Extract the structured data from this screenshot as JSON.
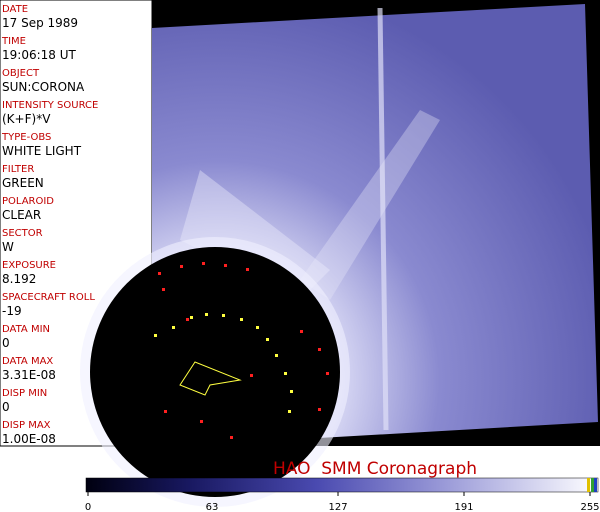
{
  "fields": [
    {
      "label": "DATE",
      "value": "17 Sep 1989"
    },
    {
      "label": "TIME",
      "value": "19:06:18 UT"
    },
    {
      "label": "OBJECT",
      "value": "SUN:CORONA"
    },
    {
      "label": "INTENSITY SOURCE",
      "value": "(K+F)*V"
    },
    {
      "label": "TYPE-OBS",
      "value": "WHITE LIGHT"
    },
    {
      "label": "FILTER",
      "value": "GREEN"
    },
    {
      "label": "POLAROID",
      "value": "CLEAR"
    },
    {
      "label": "SECTOR",
      "value": "W"
    },
    {
      "label": "EXPOSURE",
      "value": "8.192"
    },
    {
      "label": "SPACECRAFT ROLL",
      "value": "-19"
    },
    {
      "label": "DATA MIN",
      "value": "0"
    },
    {
      "label": "DATA MAX",
      "value": "3.31E-08"
    },
    {
      "label": "DISP MIN",
      "value": "0"
    },
    {
      "label": "DISP MAX",
      "value": "1.00E-08"
    }
  ],
  "title": "HAO  SMM Coronagraph",
  "colorbar": {
    "range": [
      0,
      255
    ],
    "ticks": [
      0,
      63,
      127,
      191,
      255
    ]
  }
}
